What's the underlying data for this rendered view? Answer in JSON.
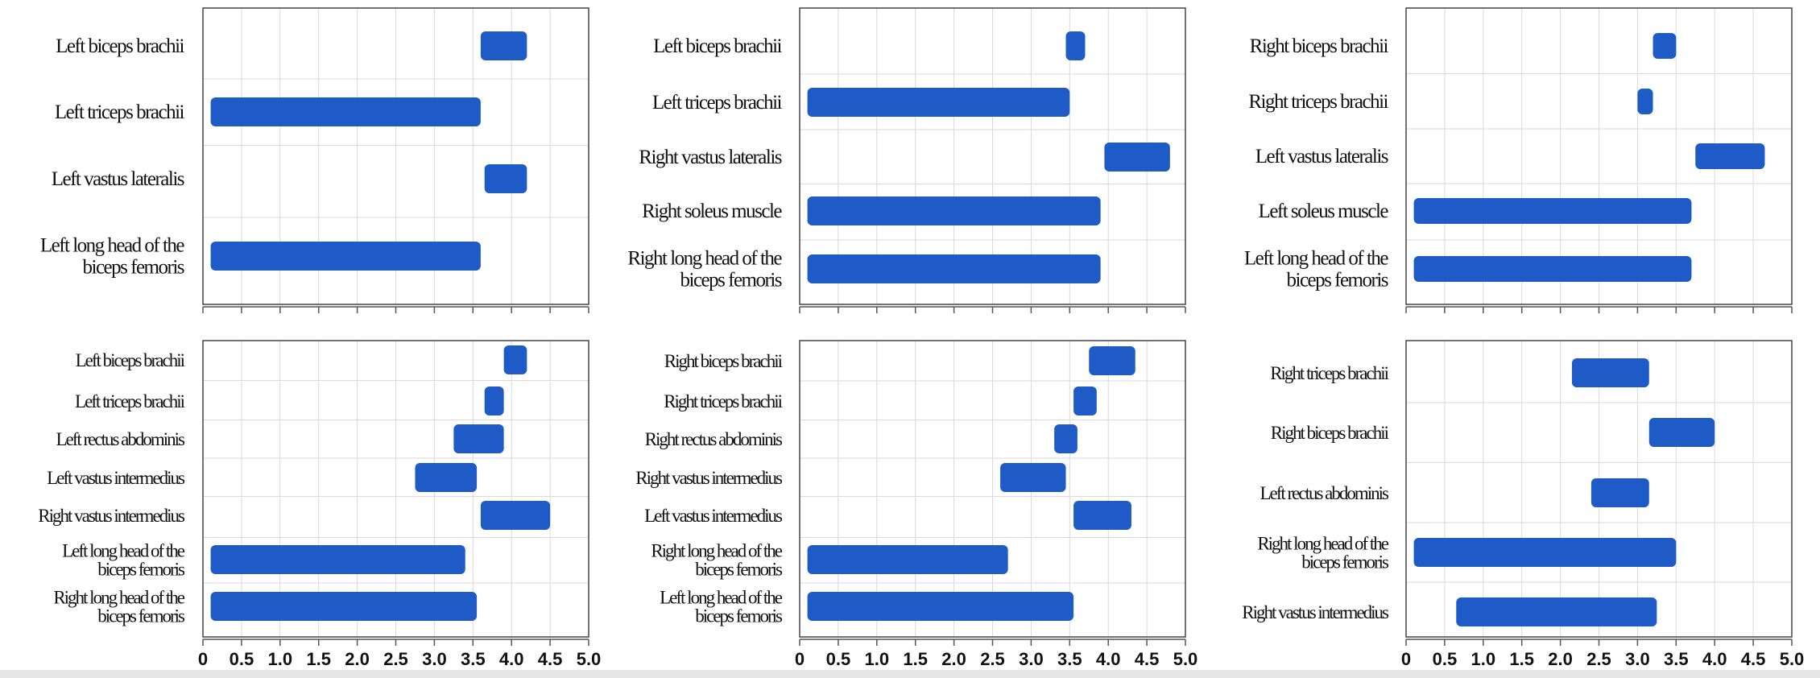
{
  "colors": {
    "bar": "#1f5bc6",
    "grid": "#d9d9d9",
    "frame": "#444444"
  },
  "x_ticks": [
    "0",
    "0.5",
    "1.0",
    "1.5",
    "2.0",
    "2.5",
    "3.0",
    "3.5",
    "4.0",
    "4.5",
    "5.0"
  ],
  "chart_data": [
    {
      "type": "bar",
      "orientation": "horizontal",
      "panel": "top-left",
      "xlim": [
        0,
        5
      ],
      "grid": true,
      "categories": [
        "Left biceps brachii",
        "Left triceps brachii",
        "Left vastus lateralis",
        "Left long head of the biceps femoris"
      ],
      "ranges": [
        [
          3.6,
          4.2
        ],
        [
          0.1,
          3.6
        ],
        [
          3.65,
          4.2
        ],
        [
          0.1,
          3.6
        ]
      ]
    },
    {
      "type": "bar",
      "orientation": "horizontal",
      "panel": "top-middle",
      "xlim": [
        0,
        5
      ],
      "grid": true,
      "categories": [
        "Left biceps brachii",
        "Left triceps brachii",
        "Right vastus lateralis",
        "Right soleus muscle",
        "Right long head of the biceps femoris"
      ],
      "ranges": [
        [
          3.45,
          3.7
        ],
        [
          0.1,
          3.5
        ],
        [
          3.95,
          4.8
        ],
        [
          0.1,
          3.9
        ],
        [
          0.1,
          3.9
        ]
      ]
    },
    {
      "type": "bar",
      "orientation": "horizontal",
      "panel": "top-right",
      "xlim": [
        0,
        5
      ],
      "grid": true,
      "categories": [
        "Right biceps brachii",
        "Right triceps brachii",
        "Left vastus lateralis",
        "Left soleus muscle",
        "Left long head of the biceps femoris"
      ],
      "ranges": [
        [
          3.2,
          3.5
        ],
        [
          3.0,
          3.2
        ],
        [
          3.75,
          4.65
        ],
        [
          0.1,
          3.7
        ],
        [
          0.1,
          3.7
        ]
      ]
    },
    {
      "type": "bar",
      "orientation": "horizontal",
      "panel": "bottom-left",
      "xlim": [
        0,
        5
      ],
      "grid": true,
      "categories": [
        "Left biceps brachii",
        "Left triceps brachii",
        "Left rectus abdominis",
        "Left vastus intermedius",
        "Right vastus intermedius",
        "Left long head of the biceps femoris",
        "Right long head of the biceps femoris"
      ],
      "ranges": [
        [
          3.9,
          4.2
        ],
        [
          3.65,
          3.9
        ],
        [
          3.25,
          3.9
        ],
        [
          2.75,
          3.55
        ],
        [
          3.6,
          4.5
        ],
        [
          0.1,
          3.4
        ],
        [
          0.1,
          3.55
        ]
      ]
    },
    {
      "type": "bar",
      "orientation": "horizontal",
      "panel": "bottom-middle",
      "xlim": [
        0,
        5
      ],
      "grid": true,
      "categories": [
        "Right biceps brachii",
        "Right triceps brachii",
        "Right rectus abdominis",
        "Right vastus intermedius",
        "Left vastus intermedius",
        "Right long head of the biceps femoris",
        "Left long head of the biceps femoris"
      ],
      "ranges": [
        [
          3.75,
          4.35
        ],
        [
          3.55,
          3.85
        ],
        [
          3.3,
          3.6
        ],
        [
          2.6,
          3.45
        ],
        [
          3.55,
          4.3
        ],
        [
          0.1,
          2.7
        ],
        [
          0.1,
          3.55
        ]
      ]
    },
    {
      "type": "bar",
      "orientation": "horizontal",
      "panel": "bottom-right",
      "xlim": [
        0,
        5
      ],
      "grid": true,
      "categories": [
        "Right triceps brachii",
        "Right biceps brachii",
        "Left rectus abdominis",
        "Right long head of the biceps femoris",
        "Right vastus intermedius"
      ],
      "ranges": [
        [
          2.15,
          3.15
        ],
        [
          3.15,
          4.0
        ],
        [
          2.4,
          3.15
        ],
        [
          0.1,
          3.5
        ],
        [
          0.65,
          3.25
        ]
      ]
    }
  ]
}
